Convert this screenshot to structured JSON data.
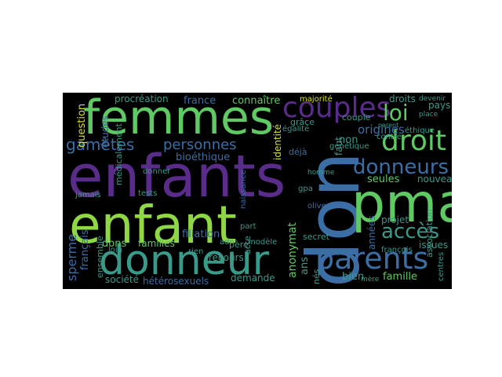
{
  "background": "#000000",
  "palette": {
    "green": "#5fc963",
    "lime": "#8fd744",
    "teal": "#3a9a8a",
    "blue": "#3b6ea5",
    "purple": "#5a2c8a",
    "darkpurple": "#46307e",
    "yellow": "#d4e12b",
    "cyan": "#2b8f8e"
  },
  "words": {
    "femmes": "femmes",
    "enfants": "enfants",
    "enfant": "enfant",
    "donneur": "donneur",
    "don": "don",
    "pma": "pma",
    "parents": "parents",
    "couples": "couples",
    "droit": "droit",
    "donneurs": "donneurs",
    "loi": "loi",
    "acces": "accès",
    "gametes": "gamètes",
    "personnes": "personnes",
    "procreation": "procréation",
    "france": "france",
    "connaitre": "connaître",
    "bioethique": "bioéthique",
    "origines": "origines",
    "droits": "droits",
    "pays": "pays",
    "couple": "couple",
    "ethique": "éthique",
    "non": "non",
    "genetique": "génétique",
    "seules": "seules",
    "nouveau": "nouveau",
    "projet": "projet",
    "famille": "famille",
    "bien": "bien",
    "anonymat": "anonymat",
    "filiation": "filiation",
    "dons": "dons",
    "sperme": "sperme",
    "question": "question",
    "etudes": "études",
    "societe": "société",
    "heterosexuels": "hétérosexuels",
    "demande": "demande",
    "familles": "familles",
    "recours": "recours",
    "pere": "père",
    "secret": "secret",
    "identite": "identité",
    "grace": "grâce",
    "majorite": "majorité",
    "egalite": "égalité",
    "deja": "déjà",
    "contre": "contre",
    "place": "place",
    "devenir": "devenir",
    "annees": "années",
    "ans": "ans",
    "faut": "faut",
    "association": "association",
    "issues": "issues",
    "francais": "français",
    "mere": "mère",
    "centres": "centres",
    "nes": "nés",
    "modele": "modèle",
    "adn": "adn",
    "part": "part",
    "rien": "rien",
    "acte": "acte",
    "gpa": "gpa",
    "homme": "homme",
    "naissance": "naissance",
    "tests": "tests",
    "loin": "loin",
    "ensemble": "ensemble",
    "medicalement": "médicalement",
    "donner": "donner",
    "jamais": "jamais",
    "francois": "françois",
    "olivennes": "olivennes",
    "parent": "parent"
  }
}
